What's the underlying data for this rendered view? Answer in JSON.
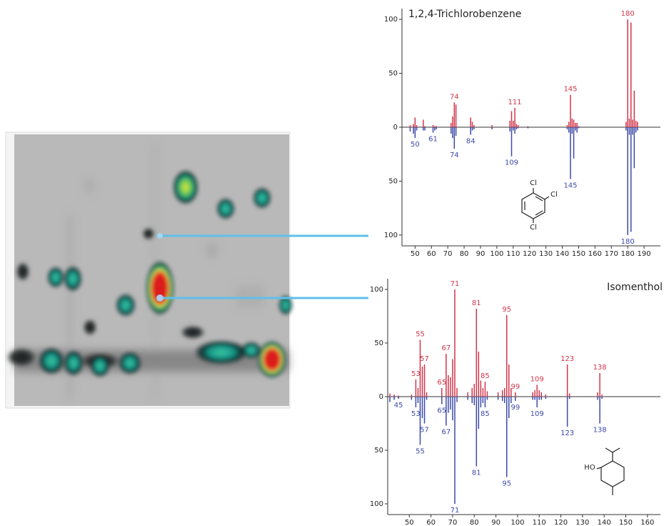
{
  "chart_data": [
    {
      "type": "mirror_bar",
      "title": "1,2,4-Trichlorobenzene",
      "x": [
        47,
        49,
        50,
        51,
        55,
        56,
        61,
        62,
        63,
        72,
        73,
        74,
        75,
        84,
        85,
        86,
        97,
        108,
        109,
        110,
        111,
        112,
        113,
        119,
        143,
        144,
        145,
        146,
        147,
        148,
        149,
        150,
        179,
        180,
        181,
        182,
        183,
        184,
        185,
        186
      ],
      "series": [
        {
          "color": "#d0364b",
          "direction": "up",
          "values": [
            2,
            3,
            9,
            2,
            7,
            1,
            2,
            1,
            1,
            4,
            10,
            23,
            21,
            9,
            5,
            2,
            2,
            6,
            15,
            6,
            18,
            3,
            2,
            1,
            2,
            5,
            30,
            8,
            7,
            4,
            4,
            1,
            5,
            100,
            8,
            97,
            7,
            34,
            6,
            5
          ],
          "point_labels": [
            null,
            null,
            null,
            null,
            null,
            null,
            null,
            null,
            null,
            null,
            null,
            74,
            null,
            null,
            null,
            null,
            null,
            null,
            null,
            null,
            111,
            null,
            null,
            null,
            null,
            null,
            145,
            null,
            null,
            null,
            null,
            null,
            null,
            180,
            null,
            null,
            null,
            null,
            null,
            null
          ]
        },
        {
          "color": "#3d4aa8",
          "direction": "down",
          "values": [
            4,
            6,
            10,
            3,
            3,
            3,
            5,
            3,
            2,
            6,
            10,
            20,
            8,
            7,
            3,
            2,
            2,
            4,
            27,
            3,
            6,
            2,
            1,
            1,
            2,
            5,
            48,
            6,
            29,
            3,
            5,
            1,
            3,
            100,
            7,
            97,
            7,
            38,
            5,
            3
          ],
          "point_labels": [
            null,
            null,
            50,
            null,
            null,
            null,
            61,
            null,
            null,
            null,
            null,
            74,
            null,
            84,
            null,
            null,
            null,
            null,
            109,
            null,
            null,
            null,
            null,
            null,
            null,
            null,
            145,
            null,
            null,
            null,
            null,
            null,
            null,
            180,
            null,
            null,
            null,
            null,
            null,
            null
          ]
        }
      ],
      "xlim": [
        42,
        200
      ],
      "xticks": [
        50,
        60,
        70,
        80,
        90,
        100,
        110,
        120,
        130,
        140,
        150,
        160,
        170,
        180,
        190
      ],
      "ylim": [
        0,
        110
      ],
      "yticks": [
        0,
        50,
        100
      ],
      "structure_labels": [
        "Cl",
        "Cl",
        "Cl"
      ]
    },
    {
      "type": "mirror_bar",
      "title": "Isomenthol",
      "x": [
        41,
        43,
        45,
        51,
        53,
        54,
        55,
        56,
        57,
        58,
        65,
        67,
        68,
        69,
        70,
        71,
        72,
        77,
        79,
        80,
        81,
        82,
        83,
        84,
        85,
        86,
        91,
        93,
        94,
        95,
        96,
        97,
        99,
        107,
        108,
        109,
        110,
        111,
        113,
        123,
        124,
        137,
        138,
        139
      ],
      "series": [
        {
          "color": "#d0364b",
          "direction": "up",
          "values": [
            3,
            2,
            1,
            2,
            16,
            8,
            53,
            28,
            30,
            4,
            8,
            40,
            20,
            18,
            35,
            100,
            8,
            4,
            8,
            12,
            82,
            42,
            15,
            8,
            14,
            5,
            4,
            6,
            8,
            76,
            30,
            8,
            4,
            4,
            6,
            11,
            6,
            4,
            2,
            30,
            3,
            4,
            22,
            2
          ],
          "point_labels": [
            null,
            null,
            null,
            null,
            53,
            null,
            55,
            null,
            57,
            null,
            65,
            67,
            null,
            null,
            null,
            71,
            null,
            null,
            null,
            null,
            81,
            null,
            null,
            null,
            85,
            null,
            null,
            null,
            null,
            95,
            null,
            null,
            99,
            null,
            null,
            109,
            null,
            null,
            null,
            123,
            null,
            null,
            138,
            null
          ]
        },
        {
          "color": "#3d4aa8",
          "direction": "down",
          "values": [
            5,
            3,
            2,
            3,
            10,
            6,
            45,
            20,
            25,
            3,
            7,
            27,
            15,
            12,
            22,
            100,
            5,
            3,
            6,
            8,
            65,
            30,
            10,
            6,
            10,
            3,
            3,
            4,
            6,
            75,
            20,
            6,
            4,
            3,
            3,
            10,
            3,
            3,
            2,
            28,
            2,
            3,
            25,
            2
          ],
          "point_labels": [
            null,
            null,
            45,
            null,
            53,
            null,
            55,
            null,
            57,
            null,
            65,
            67,
            null,
            null,
            null,
            71,
            null,
            null,
            null,
            null,
            81,
            null,
            null,
            null,
            85,
            null,
            null,
            null,
            null,
            95,
            null,
            null,
            99,
            null,
            null,
            109,
            null,
            null,
            null,
            123,
            null,
            null,
            138,
            null
          ]
        }
      ],
      "xlim": [
        40,
        166
      ],
      "xticks": [
        50,
        60,
        70,
        80,
        90,
        100,
        110,
        120,
        130,
        140,
        150,
        160
      ],
      "ylim": [
        0,
        110
      ],
      "yticks": [
        0,
        50,
        100
      ],
      "structure_labels": [
        "HO"
      ]
    }
  ]
}
